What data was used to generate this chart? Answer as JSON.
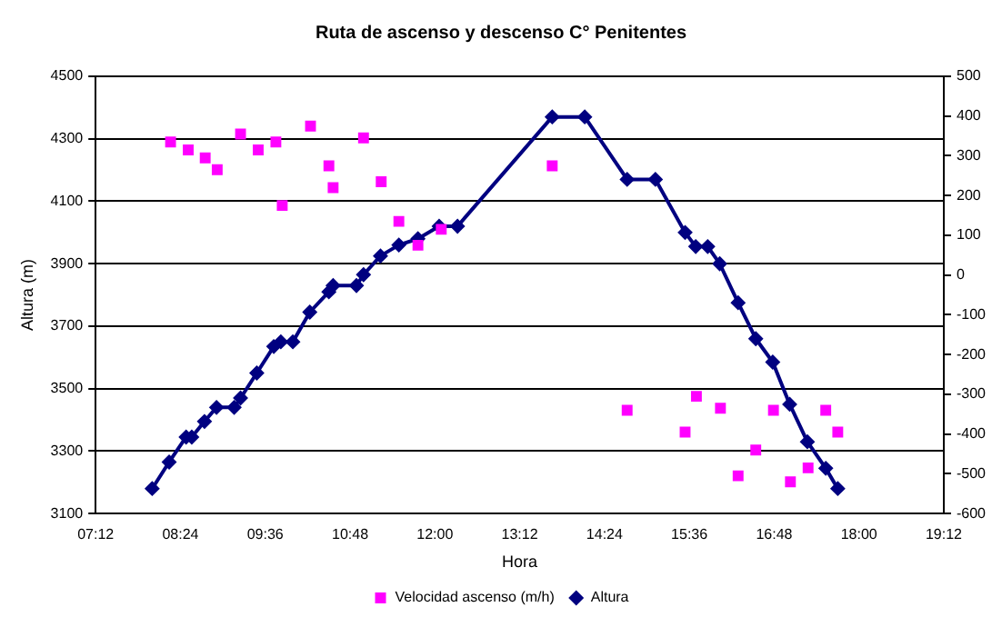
{
  "chart_data": {
    "type": "line",
    "title": "Ruta de ascenso y descenso C° Penitentes",
    "xlabel": "Hora",
    "ylabel": "Altura (m)",
    "xlim": [
      7.2,
      19.2
    ],
    "xticks": [
      {
        "value": 7.2,
        "label": "07:12"
      },
      {
        "value": 8.4,
        "label": "08:24"
      },
      {
        "value": 9.6,
        "label": "09:36"
      },
      {
        "value": 10.8,
        "label": "10:48"
      },
      {
        "value": 12,
        "label": "12:00"
      },
      {
        "value": 13.2,
        "label": "13:12"
      },
      {
        "value": 14.4,
        "label": "14:24"
      },
      {
        "value": 15.6,
        "label": "15:36"
      },
      {
        "value": 16.8,
        "label": "16:48"
      },
      {
        "value": 18,
        "label": "18:00"
      },
      {
        "value": 19.2,
        "label": "19:12"
      }
    ],
    "ylim": [
      3100,
      4500
    ],
    "yticks": [
      3100,
      3300,
      3500,
      3700,
      3900,
      4100,
      4300,
      4500
    ],
    "y2lim": [
      -600,
      500
    ],
    "y2ticks": [
      -600,
      -500,
      -400,
      -300,
      -200,
      -100,
      0,
      100,
      200,
      300,
      400,
      500
    ],
    "grid": "y",
    "legend": "bottom",
    "series": [
      {
        "name": "Altura",
        "type": "line",
        "color": "#000080",
        "marker": "diamond",
        "line_style": "solid",
        "x": [
          8.0,
          8.24,
          8.48,
          8.56,
          8.74,
          8.91,
          9.16,
          9.25,
          9.48,
          9.72,
          9.82,
          9.99,
          10.23,
          10.5,
          10.56,
          10.89,
          10.99,
          11.23,
          11.49,
          11.76,
          12.06,
          12.32,
          13.66,
          14.12,
          14.72,
          15.12,
          15.54,
          15.69,
          15.86,
          16.03,
          16.29,
          16.54,
          16.78,
          17.02,
          17.27,
          17.53,
          17.7
        ],
        "values": [
          3180,
          3265,
          3345,
          3345,
          3395,
          3440,
          3440,
          3470,
          3550,
          3635,
          3650,
          3650,
          3745,
          3810,
          3830,
          3830,
          3865,
          3925,
          3960,
          3980,
          4020,
          4020,
          4370,
          4370,
          4170,
          4170,
          4000,
          3955,
          3955,
          3900,
          3775,
          3660,
          3585,
          3450,
          3330,
          3245,
          3180
        ]
      },
      {
        "name": "Velocidad ascenso (m/h)",
        "type": "scatter",
        "axis": "y2",
        "color": "#ff00ff",
        "marker": "square",
        "x": [
          8.26,
          8.51,
          8.75,
          8.92,
          9.25,
          9.5,
          9.75,
          9.84,
          10.24,
          10.5,
          10.56,
          10.99,
          11.24,
          11.49,
          11.76,
          12.09,
          13.66,
          14.72,
          15.54,
          15.7,
          16.04,
          16.29,
          16.54,
          16.79,
          17.03,
          17.28,
          17.53,
          17.7
        ],
        "values": [
          335,
          315,
          295,
          265,
          355,
          315,
          335,
          175,
          375,
          275,
          220,
          345,
          235,
          135,
          75,
          115,
          275,
          -340,
          -395,
          -305,
          -335,
          -505,
          -440,
          -340,
          -520,
          -485,
          -340,
          -395
        ]
      }
    ]
  }
}
